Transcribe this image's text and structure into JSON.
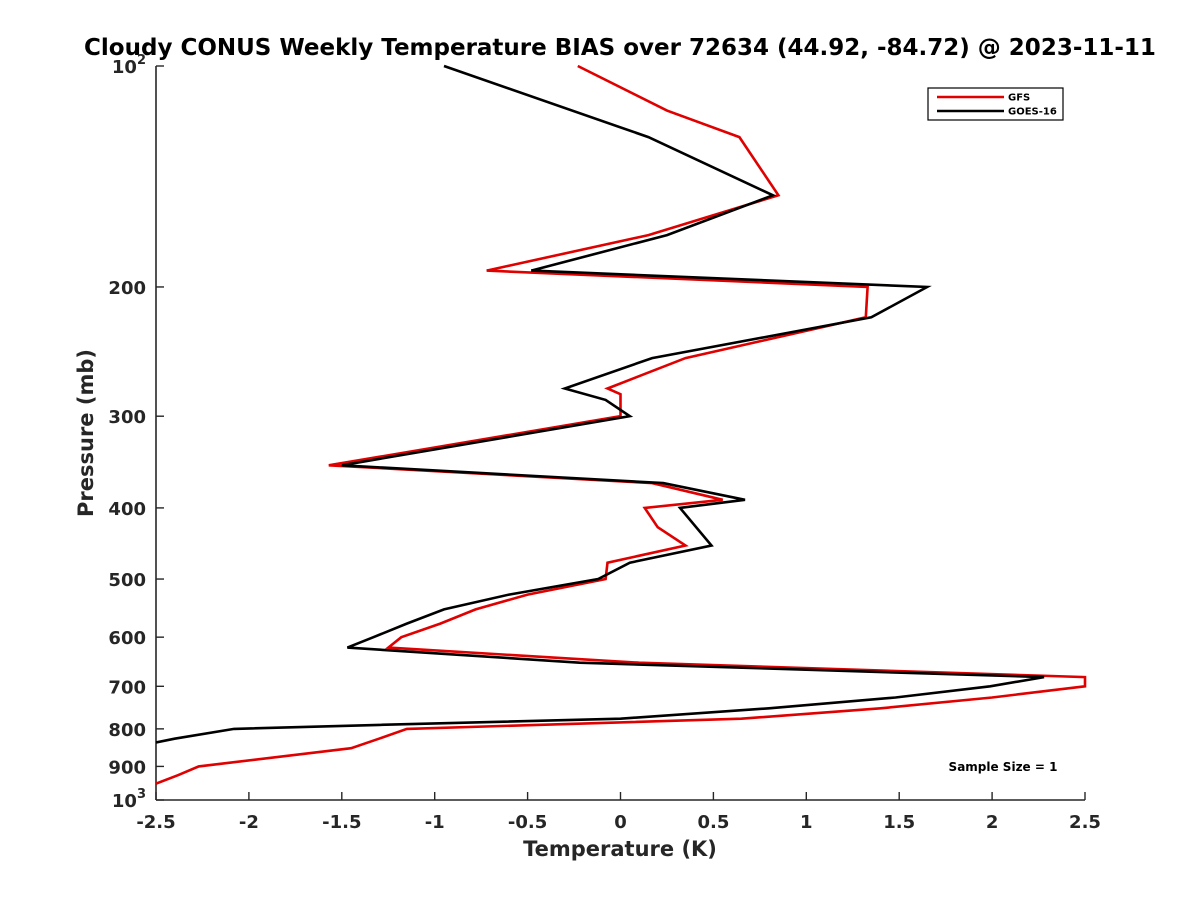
{
  "chart_data": {
    "type": "line",
    "title": "Cloudy CONUS Weekly Temperature BIAS over 72634 (44.92, -84.72) @ 2023-11-11",
    "xlabel": "Temperature (K)",
    "ylabel": "Pressure (mb)",
    "xlim": [
      -2.5,
      2.5
    ],
    "ylim": [
      100,
      1000
    ],
    "y_scale": "log",
    "y_reversed": true,
    "x_ticks": [
      -2.5,
      -2,
      -1.5,
      -1,
      -0.5,
      0,
      0.5,
      1,
      1.5,
      2,
      2.5
    ],
    "x_tick_labels": [
      "-2.5",
      "-2",
      "-1.5",
      "-1",
      "-0.5",
      "0",
      "0.5",
      "1",
      "1.5",
      "2",
      "2.5"
    ],
    "y_ticks": [
      100,
      200,
      300,
      400,
      500,
      600,
      700,
      800,
      900,
      1000
    ],
    "y_tick_labels": [
      {
        "base": "10",
        "exp": "2"
      },
      {
        "base": "200",
        "exp": ""
      },
      {
        "base": "300",
        "exp": ""
      },
      {
        "base": "400",
        "exp": ""
      },
      {
        "base": "500",
        "exp": ""
      },
      {
        "base": "600",
        "exp": ""
      },
      {
        "base": "700",
        "exp": ""
      },
      {
        "base": "800",
        "exp": ""
      },
      {
        "base": "900",
        "exp": ""
      },
      {
        "base": "10",
        "exp": "3"
      }
    ],
    "grid": false,
    "legend_position": "top-right",
    "annotation": "Sample Size = 1",
    "series": [
      {
        "name": "GFS",
        "color": "#e00000",
        "points": [
          {
            "t": -0.23,
            "p": 100
          },
          {
            "t": 0.25,
            "p": 115
          },
          {
            "t": 0.64,
            "p": 125
          },
          {
            "t": 0.85,
            "p": 150
          },
          {
            "t": 0.15,
            "p": 170
          },
          {
            "t": -0.72,
            "p": 190
          },
          {
            "t": 1.33,
            "p": 200
          },
          {
            "t": 1.32,
            "p": 220
          },
          {
            "t": 0.35,
            "p": 250
          },
          {
            "t": -0.07,
            "p": 275
          },
          {
            "t": 0.0,
            "p": 280
          },
          {
            "t": 0.0,
            "p": 300
          },
          {
            "t": -1.57,
            "p": 350
          },
          {
            "t": 0.17,
            "p": 370
          },
          {
            "t": 0.55,
            "p": 390
          },
          {
            "t": 0.13,
            "p": 400
          },
          {
            "t": 0.2,
            "p": 425
          },
          {
            "t": 0.35,
            "p": 450
          },
          {
            "t": -0.07,
            "p": 475
          },
          {
            "t": -0.08,
            "p": 500
          },
          {
            "t": -0.5,
            "p": 525
          },
          {
            "t": -0.78,
            "p": 550
          },
          {
            "t": -0.97,
            "p": 575
          },
          {
            "t": -1.18,
            "p": 600
          },
          {
            "t": -1.25,
            "p": 620
          },
          {
            "t": 0.1,
            "p": 650
          },
          {
            "t": 2.5,
            "p": 680
          },
          {
            "t": 2.5,
            "p": 700
          },
          {
            "t": 2.0,
            "p": 725
          },
          {
            "t": 1.4,
            "p": 750
          },
          {
            "t": 0.65,
            "p": 775
          },
          {
            "t": -0.45,
            "p": 790
          },
          {
            "t": -1.15,
            "p": 800
          },
          {
            "t": -1.3,
            "p": 825
          },
          {
            "t": -1.45,
            "p": 850
          },
          {
            "t": -2.27,
            "p": 900
          },
          {
            "t": -2.38,
            "p": 925
          },
          {
            "t": -2.5,
            "p": 950
          }
        ]
      },
      {
        "name": "GOES-16",
        "color": "#000000",
        "points": [
          {
            "t": -0.95,
            "p": 100
          },
          {
            "t": 0.15,
            "p": 125
          },
          {
            "t": 0.82,
            "p": 150
          },
          {
            "t": 0.25,
            "p": 170
          },
          {
            "t": -0.48,
            "p": 190
          },
          {
            "t": 1.65,
            "p": 200
          },
          {
            "t": 1.35,
            "p": 220
          },
          {
            "t": 0.17,
            "p": 250
          },
          {
            "t": -0.3,
            "p": 275
          },
          {
            "t": -0.08,
            "p": 285
          },
          {
            "t": 0.05,
            "p": 300
          },
          {
            "t": -1.5,
            "p": 350
          },
          {
            "t": 0.23,
            "p": 370
          },
          {
            "t": 0.67,
            "p": 390
          },
          {
            "t": 0.32,
            "p": 400
          },
          {
            "t": 0.49,
            "p": 450
          },
          {
            "t": 0.05,
            "p": 475
          },
          {
            "t": -0.12,
            "p": 500
          },
          {
            "t": -0.6,
            "p": 525
          },
          {
            "t": -0.95,
            "p": 550
          },
          {
            "t": -1.15,
            "p": 575
          },
          {
            "t": -1.33,
            "p": 600
          },
          {
            "t": -1.47,
            "p": 620
          },
          {
            "t": -0.22,
            "p": 650
          },
          {
            "t": 2.28,
            "p": 680
          },
          {
            "t": 1.99,
            "p": 700
          },
          {
            "t": 1.48,
            "p": 725
          },
          {
            "t": 0.8,
            "p": 750
          },
          {
            "t": 0.0,
            "p": 775
          },
          {
            "t": -1.3,
            "p": 790
          },
          {
            "t": -2.08,
            "p": 800
          },
          {
            "t": -2.4,
            "p": 825
          },
          {
            "t": -2.5,
            "p": 835
          }
        ]
      }
    ]
  }
}
